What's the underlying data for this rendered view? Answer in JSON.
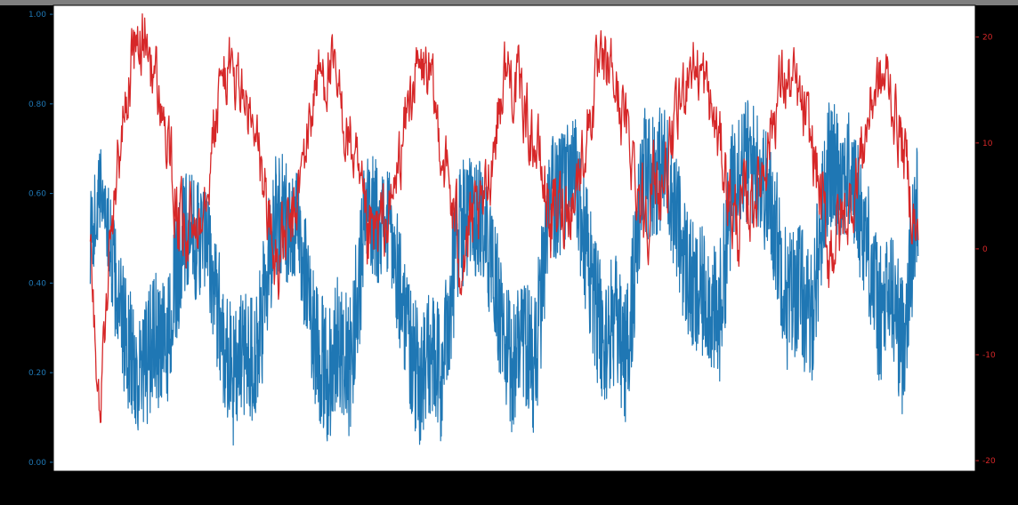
{
  "figure": {
    "background": "#000000",
    "plot_background": "#ffffff",
    "top_band_color": "#7f7f7f"
  },
  "chart_data": {
    "type": "line",
    "title": "",
    "xlabel": "",
    "y_left_label": "",
    "y_right_label": "",
    "xlim": [
      -0.4,
      9.6
    ],
    "x_tick_values": [
      0,
      1,
      2,
      3,
      4,
      5,
      6,
      7,
      8,
      9
    ],
    "x_tick_labels": [
      "",
      "",
      "",
      "",
      "",
      "",
      "",
      "",
      "",
      ""
    ],
    "y_left": {
      "color": "#1f77b4",
      "ylim": [
        -0.1,
        5.1
      ],
      "tick_values": [
        0,
        1,
        2,
        3,
        4,
        5
      ],
      "tick_labels": [
        "0.00",
        "0.20",
        "0.40",
        "0.60",
        "0.80",
        "1.00"
      ]
    },
    "y_right": {
      "color": "#d62728",
      "ylim": [
        -21,
        23
      ],
      "tick_values": [
        -20,
        -10,
        0,
        10,
        20
      ],
      "tick_labels": [
        "-20",
        "-10",
        "0",
        "10",
        "20"
      ]
    },
    "grid": false,
    "legend": "none",
    "series": [
      {
        "axis": "left",
        "color": "#1f77b4",
        "x": [
          0.0,
          0.13,
          0.31,
          0.44,
          0.56,
          0.69,
          0.81,
          1.0,
          1.25,
          1.44,
          1.56,
          1.69,
          1.81,
          2.0,
          2.25,
          2.44,
          2.56,
          2.69,
          2.81,
          3.0,
          3.25,
          3.44,
          3.56,
          3.69,
          3.81,
          4.0,
          4.25,
          4.44,
          4.56,
          4.69,
          4.81,
          5.0,
          5.25,
          5.44,
          5.56,
          5.69,
          5.81,
          6.0,
          6.25,
          6.44,
          6.56,
          6.69,
          6.81,
          7.0,
          7.25,
          7.44,
          7.56,
          7.69,
          7.81,
          8.0,
          8.25,
          8.44,
          8.56,
          8.69,
          8.81,
          8.98
        ],
        "y": [
          2.5,
          3.1,
          1.7,
          1.2,
          0.9,
          1.4,
          1.2,
          2.5,
          2.5,
          1.4,
          0.9,
          1.3,
          1.1,
          2.8,
          2.6,
          1.4,
          0.9,
          1.4,
          1.0,
          2.8,
          2.6,
          1.5,
          0.9,
          1.2,
          0.9,
          2.7,
          2.7,
          1.7,
          1.0,
          1.5,
          1.0,
          2.9,
          3.2,
          2.0,
          1.3,
          1.6,
          1.1,
          3.2,
          3.3,
          2.3,
          1.8,
          1.9,
          1.5,
          3.4,
          3.3,
          2.6,
          1.8,
          2.0,
          1.5,
          3.3,
          3.2,
          2.4,
          1.6,
          1.9,
          1.3,
          3.0
        ],
        "noise_amplitude": [
          0.55,
          0.5,
          0.65,
          0.75,
          0.8,
          0.75,
          0.8,
          0.75,
          0.65,
          0.75,
          0.8,
          0.75,
          0.8,
          0.75,
          0.65,
          0.75,
          0.8,
          0.75,
          0.8,
          0.75,
          0.65,
          0.75,
          0.8,
          0.75,
          0.8,
          0.75,
          0.65,
          0.75,
          0.8,
          0.75,
          0.8,
          0.75,
          0.7,
          0.75,
          0.8,
          0.75,
          0.8,
          0.75,
          0.7,
          0.75,
          0.8,
          0.75,
          0.8,
          0.75,
          0.7,
          0.75,
          0.8,
          0.75,
          0.8,
          0.75,
          0.7,
          0.75,
          0.8,
          0.75,
          0.8,
          0.7
        ]
      },
      {
        "axis": "right",
        "color": "#d62728",
        "x": [
          0.0,
          0.1,
          0.25,
          0.45,
          0.6,
          0.8,
          1.0,
          1.2,
          1.45,
          1.6,
          1.85,
          2.0,
          2.2,
          2.45,
          2.6,
          2.85,
          3.0,
          3.25,
          3.5,
          3.65,
          3.85,
          4.0,
          4.25,
          4.5,
          4.65,
          4.85,
          5.0,
          5.25,
          5.5,
          5.65,
          5.85,
          6.0,
          6.25,
          6.5,
          6.65,
          6.85,
          7.0,
          7.25,
          7.5,
          7.65,
          7.85,
          8.0,
          8.25,
          8.5,
          8.65,
          8.85,
          8.98
        ],
        "y": [
          2,
          -16,
          5,
          18,
          20,
          12,
          0,
          4,
          17,
          16,
          8,
          -1,
          2,
          16,
          17,
          9,
          0,
          3,
          16,
          17,
          8,
          0,
          3,
          17,
          15,
          9,
          3,
          5,
          16,
          17,
          10,
          4,
          7,
          18,
          16,
          9,
          2,
          6,
          16,
          15,
          9,
          0,
          4,
          15,
          16,
          8,
          0
        ],
        "noise_amplitude": [
          3.0,
          2.5,
          3.0,
          3.0,
          3.5,
          3.0,
          4.0,
          3.0,
          3.0,
          3.0,
          3.0,
          4.0,
          3.0,
          3.0,
          3.0,
          3.0,
          4.0,
          3.0,
          3.0,
          3.0,
          3.0,
          4.0,
          3.0,
          3.0,
          3.0,
          3.0,
          4.0,
          3.0,
          3.0,
          3.0,
          3.0,
          4.0,
          3.0,
          3.0,
          3.0,
          3.0,
          4.0,
          3.0,
          3.0,
          3.0,
          3.0,
          4.0,
          3.0,
          3.0,
          3.0,
          3.0,
          3.0
        ]
      }
    ]
  }
}
